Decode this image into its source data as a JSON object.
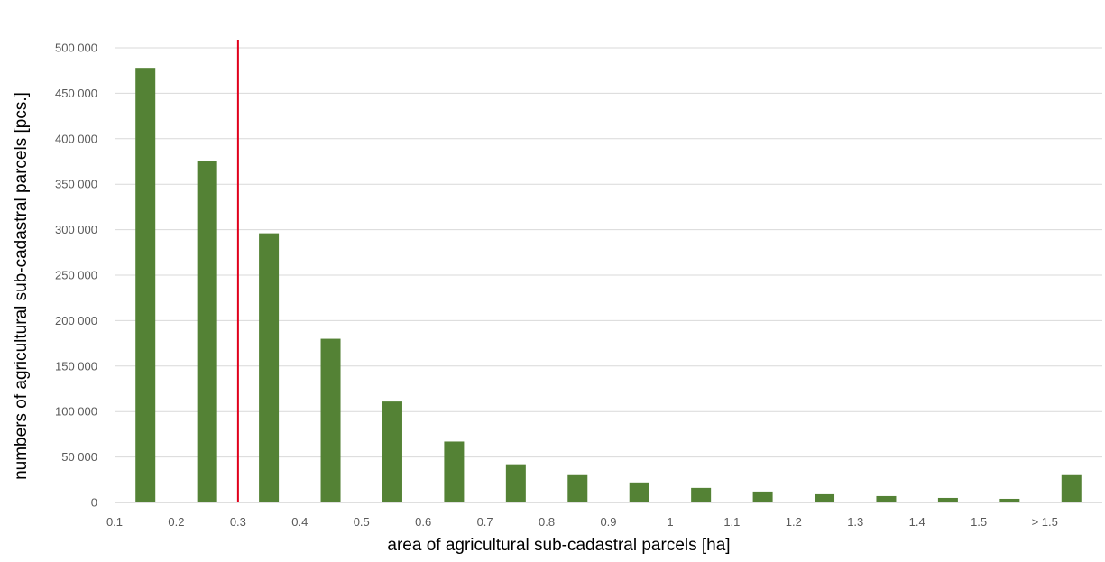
{
  "chart_data": {
    "type": "bar",
    "title": "",
    "xlabel": "area of agricultural sub-cadastral parcels [ha]",
    "ylabel": "numbers of agricultural sub-cadastral parcels [pcs.]",
    "x_tick_labels": [
      "0.1",
      "0.2",
      "0.3",
      "0.4",
      "0.5",
      "0.6",
      "0.7",
      "0.8",
      "0.9",
      "1",
      "1.1",
      "1.2",
      "1.3",
      "1.4",
      "1.5",
      "> 1.5"
    ],
    "y_tick_labels": [
      "0",
      "50 000",
      "100 000",
      "150 000",
      "200 000",
      "250 000",
      "300 000",
      "350 000",
      "400 000",
      "450 000",
      "500 000"
    ],
    "ylim": [
      0,
      500000
    ],
    "ytick_step": 50000,
    "grid": true,
    "legend": "none",
    "bar_color": "#548235",
    "reference_line": {
      "x": 0.3,
      "color": "#e0001b"
    },
    "series": [
      {
        "values": [
          478000,
          376000,
          296000,
          180000,
          111000,
          67000,
          42000,
          30000,
          22000,
          16000,
          12000,
          9000,
          7000,
          5000,
          4000,
          30000
        ]
      }
    ]
  }
}
